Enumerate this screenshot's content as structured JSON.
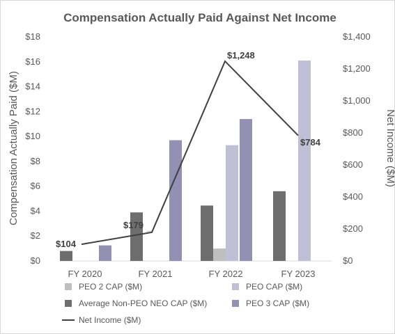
{
  "chart_data": {
    "type": "bar",
    "title": "Compensation Actually Paid Against Net Income",
    "ylabel": "Compensation Actually Paid ($M)",
    "y2label": "Net Income ($M)",
    "categories": [
      "FY 2020",
      "FY 2021",
      "FY 2022",
      "FY 2023"
    ],
    "ylim": [
      0,
      18
    ],
    "y2lim": [
      0,
      1400
    ],
    "yticks": [
      "$0",
      "$2",
      "$4",
      "$6",
      "$8",
      "$10",
      "$12",
      "$14",
      "$16",
      "$18"
    ],
    "y2ticks": [
      "$0",
      "$200",
      "$400",
      "$600",
      "$800",
      "$1,000",
      "$1,200",
      "$1,400"
    ],
    "grid": false,
    "legend_position": "bottom",
    "bar_series": [
      {
        "name": "PEO 2 CAP ($M)",
        "color": "#bfbfbf",
        "values": [
          null,
          null,
          1.0,
          null
        ]
      },
      {
        "name": "PEO CAP ($M)",
        "color": "#c0bfd6",
        "values": [
          null,
          null,
          9.3,
          16.1
        ]
      },
      {
        "name": "Average Non-PEO NEO CAP ($M)",
        "color": "#6e6e6e",
        "values": [
          0.8,
          3.9,
          4.45,
          5.6
        ]
      },
      {
        "name": "PEO 3 CAP ($M)",
        "color": "#9391b3",
        "values": [
          1.25,
          9.7,
          11.4,
          null
        ]
      }
    ],
    "line_series": {
      "name": "Net Income ($M)",
      "color": "#404040",
      "values": [
        104,
        179,
        1248,
        784
      ],
      "labels": [
        "$104",
        "$179",
        "$1,248",
        "$784"
      ]
    },
    "legend": [
      {
        "name": "PEO 2 CAP ($M)",
        "kind": "bar",
        "color": "#bfbfbf"
      },
      {
        "name": "PEO CAP ($M)",
        "kind": "bar",
        "color": "#c0bfd6"
      },
      {
        "name": "Average Non-PEO NEO CAP ($M)",
        "kind": "bar",
        "color": "#6e6e6e"
      },
      {
        "name": "PEO 3 CAP ($M)",
        "kind": "bar",
        "color": "#9391b3"
      },
      {
        "name": "Net Income ($M)",
        "kind": "line",
        "color": "#404040"
      }
    ]
  }
}
